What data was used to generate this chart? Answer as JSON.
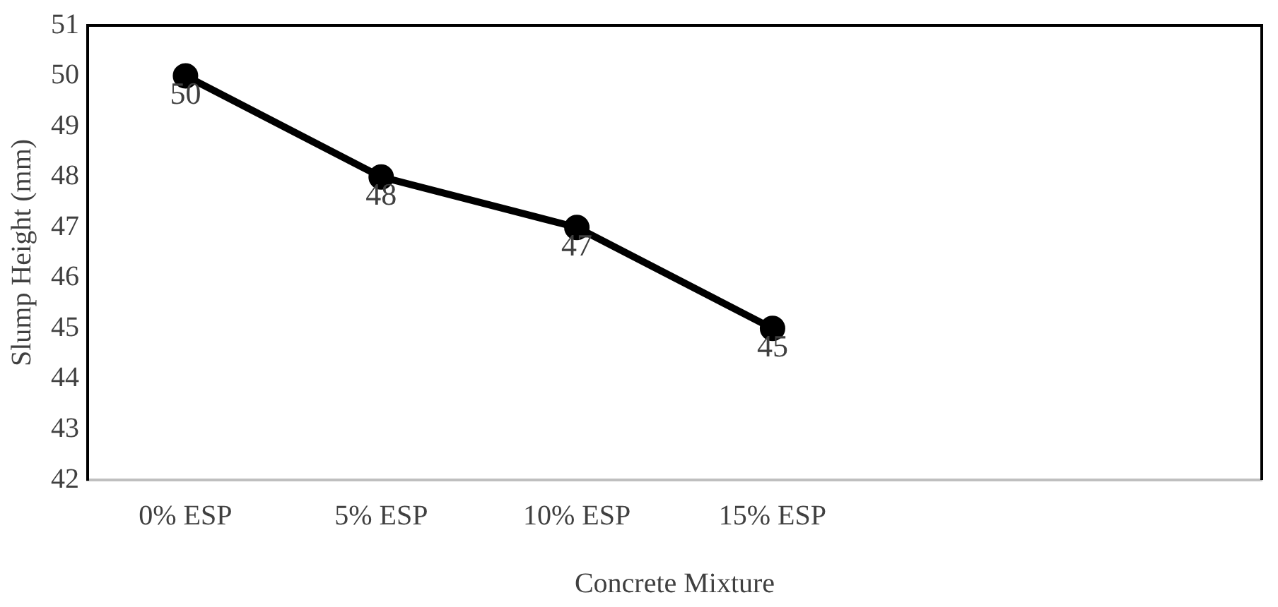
{
  "chart_data": {
    "type": "line",
    "xlabel": "Concrete Mixture",
    "ylabel": "Slump Height (mm)",
    "categories": [
      "0% ESP",
      "5% ESP",
      "10% ESP",
      "15% ESP",
      null,
      null
    ],
    "series": [
      {
        "color": "#000000",
        "values": [
          50,
          48,
          47,
          45,
          null,
          null
        ]
      }
    ],
    "ylim": [
      42,
      51
    ],
    "yticks": [
      42,
      43,
      44,
      45,
      46,
      47,
      48,
      49,
      50,
      51
    ],
    "grid": false,
    "legend": false,
    "marker": "circle",
    "line_style": "solid",
    "data_labels": true
  }
}
